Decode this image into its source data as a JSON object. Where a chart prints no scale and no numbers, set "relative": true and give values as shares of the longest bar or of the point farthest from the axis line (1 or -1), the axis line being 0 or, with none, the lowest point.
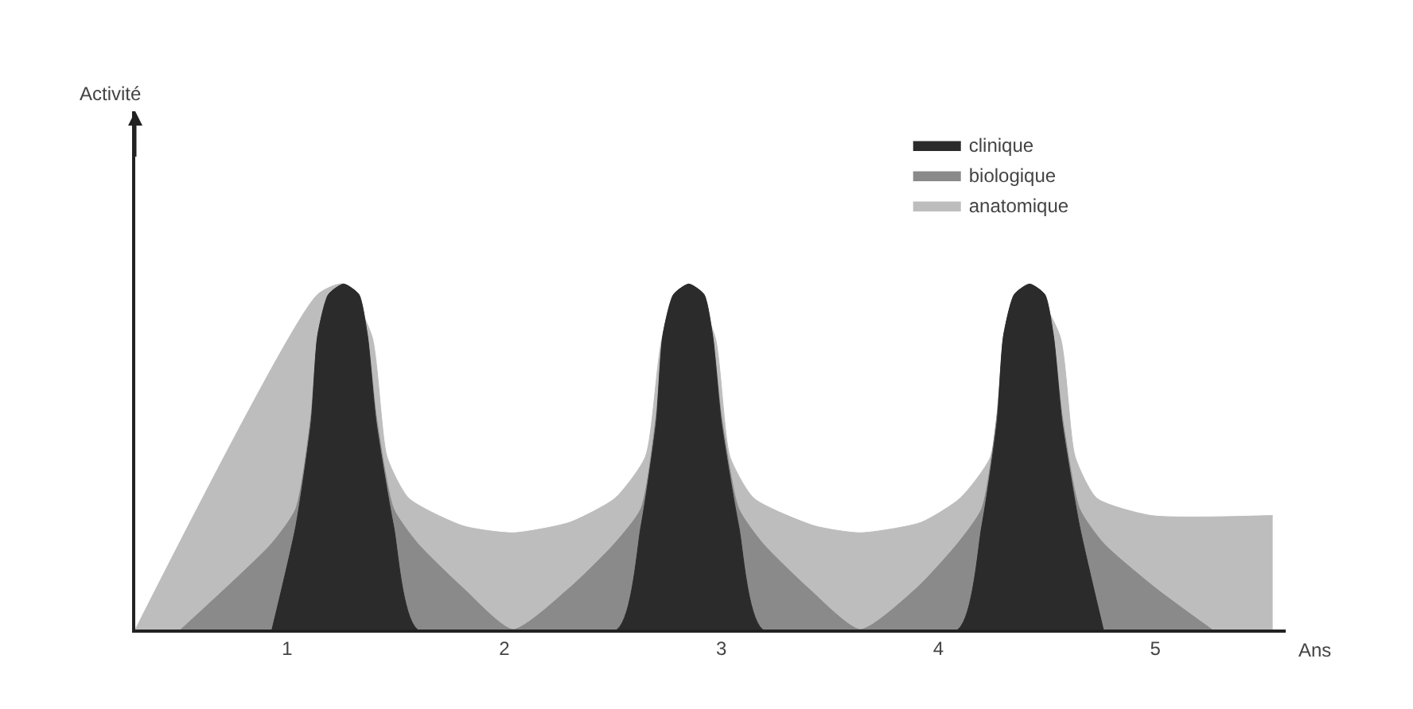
{
  "chart_data": {
    "type": "area",
    "relative": true,
    "xlabel": "Ans",
    "annotations": [
      "Activité"
    ],
    "xlim": [
      0.3,
      5.6
    ],
    "xticks": [
      1,
      2,
      3,
      4,
      5
    ],
    "legend": "top right",
    "series": [
      {
        "name": "clinique",
        "color": "#2b2b2b",
        "x": [
          0.93,
          1.04,
          1.11,
          1.14,
          1.19,
          1.26,
          1.33,
          1.37,
          1.41,
          1.49,
          1.6,
          2.52,
          2.63,
          2.7,
          2.73,
          2.78,
          2.85,
          2.92,
          2.96,
          3.0,
          3.08,
          3.19,
          4.09,
          4.2,
          4.27,
          4.3,
          4.35,
          4.42,
          4.49,
          4.53,
          4.57,
          4.65,
          4.76
        ],
        "values": [
          0,
          0.3,
          0.6,
          0.85,
          0.97,
          1,
          0.97,
          0.85,
          0.6,
          0.3,
          0,
          0,
          0.3,
          0.6,
          0.85,
          0.97,
          1,
          0.97,
          0.85,
          0.6,
          0.3,
          0,
          0,
          0.3,
          0.6,
          0.85,
          0.97,
          1,
          0.97,
          0.85,
          0.6,
          0.3,
          0
        ]
      },
      {
        "name": "biologique",
        "color": "#8a8a8a",
        "x": [
          0.51,
          0.93,
          1.04,
          1.11,
          1.14,
          1.19,
          1.26,
          1.33,
          1.37,
          1.41,
          1.49,
          1.6,
          1.81,
          2.04,
          2.3,
          2.51,
          2.63,
          2.7,
          2.73,
          2.78,
          2.85,
          2.92,
          2.96,
          3.0,
          3.08,
          3.19,
          3.4,
          3.64,
          3.9,
          4.09,
          4.2,
          4.27,
          4.3,
          4.35,
          4.42,
          4.49,
          4.53,
          4.57,
          4.65,
          4.76,
          5.0,
          5.26
        ],
        "values": [
          0,
          0.25,
          0.35,
          0.62,
          0.85,
          0.97,
          1,
          0.97,
          0.85,
          0.62,
          0.35,
          0.25,
          0.12,
          0,
          0.12,
          0.25,
          0.35,
          0.62,
          0.85,
          0.97,
          1,
          0.97,
          0.85,
          0.62,
          0.35,
          0.25,
          0.12,
          0,
          0.12,
          0.25,
          0.35,
          0.62,
          0.85,
          0.97,
          1,
          0.97,
          0.85,
          0.62,
          0.35,
          0.25,
          0.12,
          0
        ]
      },
      {
        "name": "anatomique",
        "color": "#bdbdbd",
        "x": [
          0.3,
          1.14,
          1.26,
          1.39,
          1.46,
          1.56,
          1.81,
          2.04,
          2.3,
          2.51,
          2.65,
          2.73,
          2.85,
          2.97,
          3.04,
          3.15,
          3.43,
          3.64,
          3.92,
          4.1,
          4.24,
          4.31,
          4.42,
          4.56,
          4.63,
          4.73,
          4.98,
          5.54
        ],
        "values": [
          0,
          0.97,
          1,
          0.85,
          0.5,
          0.38,
          0.3,
          0.28,
          0.31,
          0.38,
          0.5,
          0.85,
          1,
          0.85,
          0.5,
          0.38,
          0.3,
          0.28,
          0.31,
          0.38,
          0.5,
          0.85,
          1,
          0.85,
          0.5,
          0.38,
          0.33,
          0.33
        ]
      }
    ]
  }
}
